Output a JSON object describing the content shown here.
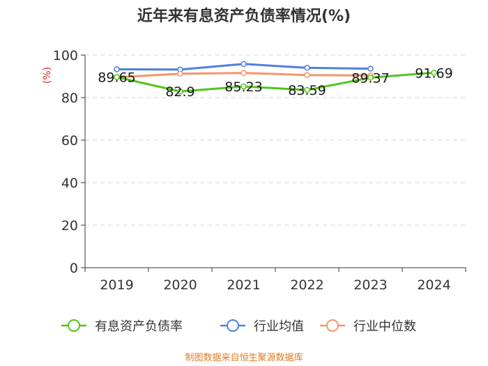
{
  "chart_data": {
    "type": "line",
    "title": "近年来有息资产负债率情况(%)",
    "ylabel": "(%)",
    "xlabel": "",
    "categories": [
      "2019",
      "2020",
      "2021",
      "2022",
      "2023",
      "2024"
    ],
    "ylim": [
      0,
      100
    ],
    "yticks": [
      0,
      20,
      40,
      60,
      80,
      100
    ],
    "grid": true,
    "legend_position": "bottom",
    "series": [
      {
        "name": "有息资产负债率",
        "color": "#52c41a",
        "values": [
          89.65,
          82.9,
          85.23,
          83.59,
          89.37,
          91.69
        ],
        "labels": [
          "89.65",
          "82.9",
          "85.23",
          "83.59",
          "89.37",
          "91.69"
        ]
      },
      {
        "name": "行业均值",
        "color": "#4f7fdf",
        "values": [
          93.3,
          93.2,
          95.8,
          94.0,
          93.6,
          null
        ]
      },
      {
        "name": "行业中位数",
        "color": "#f4956a",
        "values": [
          89.6,
          91.2,
          91.6,
          90.6,
          90.4,
          null
        ]
      }
    ],
    "source": "制图数据来自恒生聚源数据库"
  }
}
